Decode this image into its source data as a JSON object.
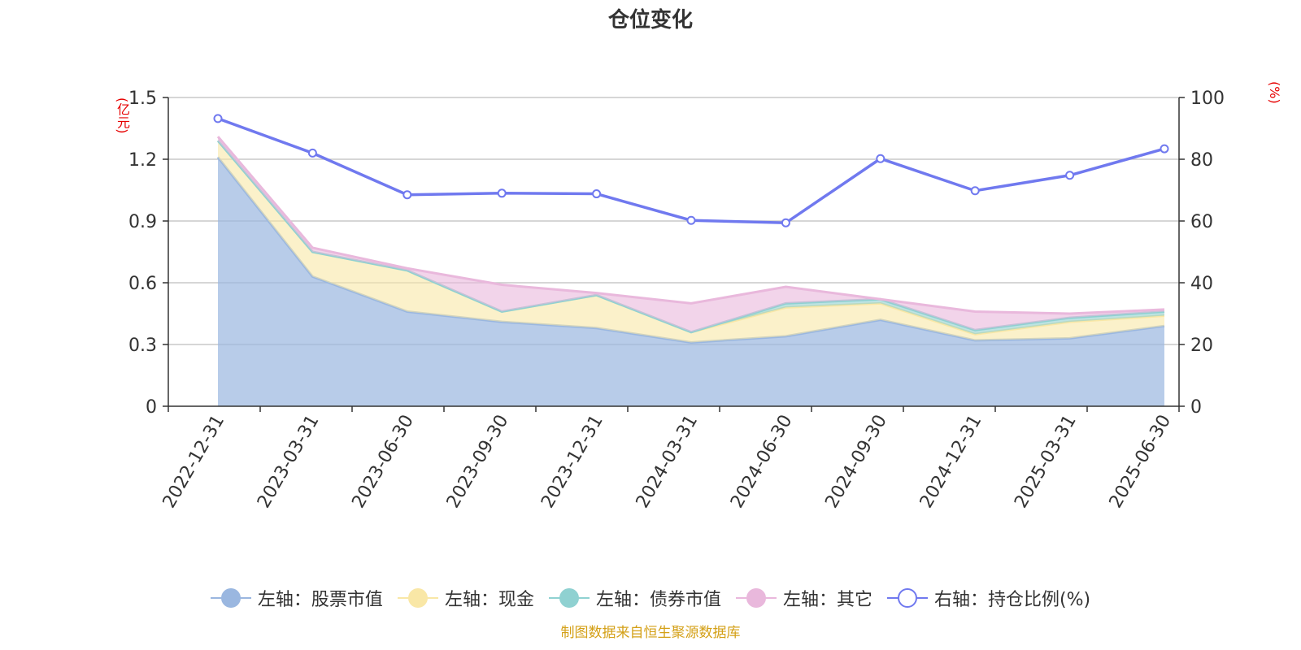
{
  "chart_data": {
    "type": "area",
    "title": "仓位变化",
    "left_axis_unit": "(亿元)",
    "right_axis_unit": "(%)",
    "categories": [
      "2022-12-31",
      "2023-03-31",
      "2023-06-30",
      "2023-09-30",
      "2023-12-31",
      "2024-03-31",
      "2024-06-30",
      "2024-09-30",
      "2024-12-31",
      "2025-03-31",
      "2025-06-30"
    ],
    "left_axis": {
      "ylim": [
        0,
        1.5
      ],
      "ticks": [
        "0",
        "0.3",
        "0.6",
        "0.9",
        "1.2",
        "1.5"
      ]
    },
    "right_axis": {
      "ylim": [
        0,
        100
      ],
      "ticks": [
        "0",
        "20",
        "40",
        "60",
        "80",
        "100"
      ]
    },
    "series": [
      {
        "name": "左轴：股票市值",
        "axis": "left",
        "stack": true,
        "color": "#9ab7e0",
        "values": [
          1.21,
          0.63,
          0.46,
          0.41,
          0.38,
          0.31,
          0.34,
          0.42,
          0.32,
          0.33,
          0.39
        ]
      },
      {
        "name": "左轴：现金",
        "axis": "left",
        "stack": true,
        "color": "#f9e7a6",
        "values": [
          0.08,
          0.12,
          0.2,
          0.05,
          0.16,
          0.05,
          0.14,
          0.08,
          0.03,
          0.08,
          0.05
        ]
      },
      {
        "name": "左轴：债券市值",
        "axis": "left",
        "stack": true,
        "color": "#8fd1d1",
        "values": [
          0,
          0,
          0,
          0,
          0,
          0,
          0.02,
          0.02,
          0.02,
          0.02,
          0.02
        ]
      },
      {
        "name": "左轴：其它",
        "axis": "left",
        "stack": true,
        "color": "#e9b8dc",
        "values": [
          0.02,
          0.02,
          0.01,
          0.13,
          0.01,
          0.14,
          0.08,
          0,
          0.09,
          0.02,
          0.01
        ]
      },
      {
        "name": "右轴：持仓比例(%)",
        "axis": "right",
        "type": "line",
        "color": "#7079ef",
        "values": [
          93.2,
          82.0,
          68.5,
          69.0,
          68.8,
          60.2,
          59.4,
          80.2,
          69.8,
          74.8,
          83.4
        ]
      }
    ],
    "grid": true,
    "legend_position": "bottom"
  },
  "source_text": "制图数据来自恒生聚源数据库"
}
